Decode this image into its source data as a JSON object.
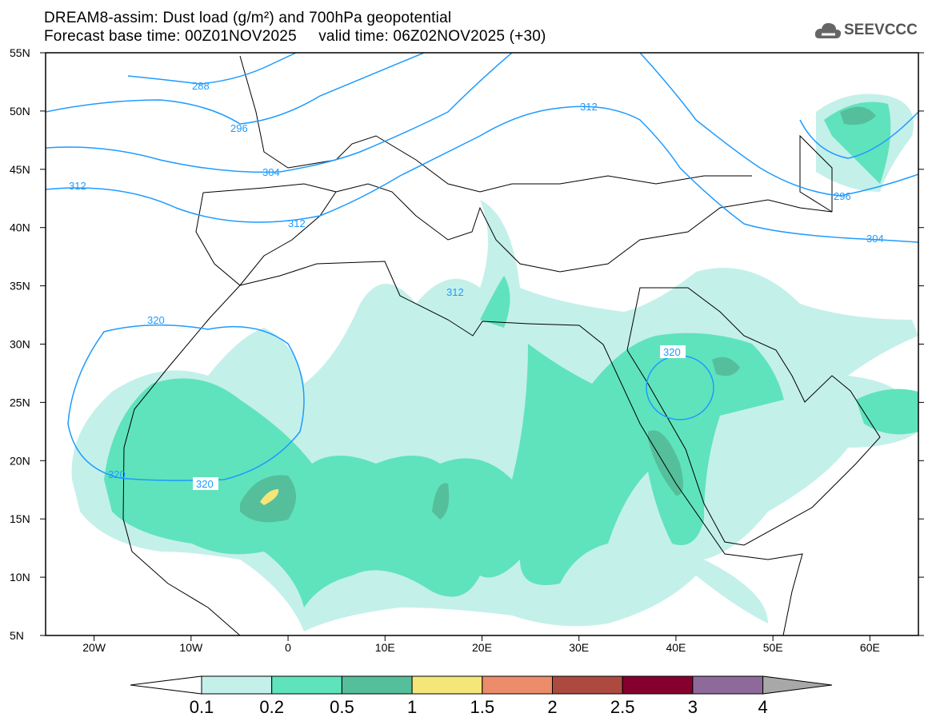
{
  "header": {
    "title": "DREAM8-assim: Dust load (g/m²) and 700hPa geopotential",
    "subtitle": "Forecast base time: 00Z01NOV2025     valid time: 06Z02NOV2025 (+30)"
  },
  "logo": {
    "text": "SEEVCCC",
    "icon": "cloud-icon"
  },
  "axes": {
    "lat_labels": [
      "55N",
      "50N",
      "45N",
      "40N",
      "35N",
      "30N",
      "25N",
      "20N",
      "15N",
      "10N",
      "5N"
    ],
    "lon_labels": [
      "20W",
      "10W",
      "0",
      "10E",
      "20E",
      "30E",
      "40E",
      "50E",
      "60E"
    ]
  },
  "contour_labels": [
    "288",
    "296",
    "304",
    "312",
    "312",
    "312",
    "320",
    "320",
    "320",
    "320",
    "312",
    "304",
    "296"
  ],
  "colorbar": {
    "ticks": [
      "0.1",
      "0.2",
      "0.5",
      "1",
      "1.5",
      "2",
      "2.5",
      "3",
      "4"
    ],
    "colors": [
      "#c4f0ea",
      "#5fe3bc",
      "#55bf9b",
      "#f5e67a",
      "#ec8c6a",
      "#ad4a40",
      "#85002f",
      "#8e6a9a"
    ],
    "over_color": "#a8a8a8",
    "under_color": "#ffffff"
  },
  "colors": {
    "contour": "#1e9bff"
  }
}
